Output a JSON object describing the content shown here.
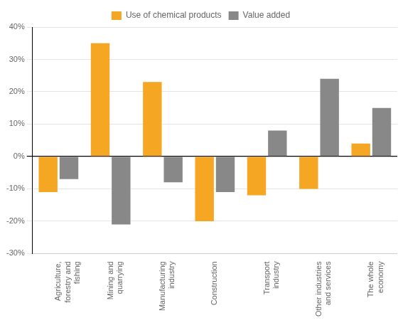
{
  "chart_data": {
    "type": "bar",
    "categories": [
      "Agriculture,\nforestry and\nfishing",
      "Mining and\nquarrying",
      "Manufacturing\nindustry",
      "Construction",
      "Transport\nindustry",
      "Other industries\nand services",
      "The whole\neconomy"
    ],
    "series": [
      {
        "name": "Use of chemical products",
        "color": "#F5A623",
        "values": [
          -11,
          35,
          23,
          -20,
          -12,
          -10,
          4
        ]
      },
      {
        "name": "Value added",
        "color": "#888888",
        "values": [
          -7,
          -21,
          -8,
          -11,
          8,
          24,
          15
        ]
      }
    ],
    "ylim": [
      -30,
      40
    ],
    "yticks": [
      {
        "value": -30,
        "label": "-30%"
      },
      {
        "value": -20,
        "label": "-20%"
      },
      {
        "value": -10,
        "label": "-10%"
      },
      {
        "value": 0,
        "label": "0%"
      },
      {
        "value": 10,
        "label": "10%"
      },
      {
        "value": 20,
        "label": "20%"
      },
      {
        "value": 30,
        "label": "30%"
      },
      {
        "value": 40,
        "label": "40%"
      }
    ],
    "grid": true,
    "legend": "top"
  }
}
